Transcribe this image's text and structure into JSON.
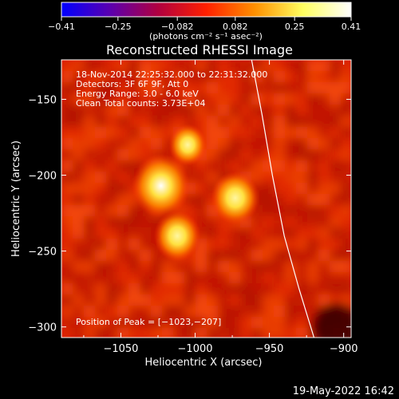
{
  "chart_data": {
    "type": "heatmap",
    "title": "Reconstructed RHESSI Image",
    "xlabel": "Heliocentric X (arcsec)",
    "ylabel": "Heliocentric Y (arcsec)",
    "xlim": [
      -1090,
      -895
    ],
    "ylim": [
      -307,
      -124
    ],
    "x_ticks": [
      -1050,
      -1000,
      -950,
      -900
    ],
    "y_ticks": [
      -150,
      -200,
      -250,
      -300
    ],
    "x_tick_labels": [
      "−1050",
      "−1000",
      "−950",
      "−900"
    ],
    "y_tick_labels": [
      "−150",
      "−200",
      "−250",
      "−300"
    ],
    "colorbar": {
      "min": -0.41,
      "max": 0.41,
      "ticks": [
        -0.41,
        -0.25,
        -0.082,
        0.082,
        0.25,
        0.41
      ],
      "tick_labels": [
        "−0.41",
        "−0.25",
        "−0.082",
        "0.082",
        "0.25",
        "0.41"
      ],
      "units": "(photons cm⁻² s⁻¹ asec⁻²)",
      "colors": [
        "#0000ff",
        "#5a00b0",
        "#b00040",
        "#ff2000",
        "#ff9000",
        "#ffff60",
        "#ffffff"
      ]
    },
    "sources": [
      {
        "x": -1023,
        "y": -207,
        "peak": 0.41
      },
      {
        "x": -973,
        "y": -215,
        "peak": 0.3
      },
      {
        "x": -1012,
        "y": -240,
        "peak": 0.28
      },
      {
        "x": -1005,
        "y": -180,
        "peak": 0.18
      }
    ],
    "limb_curve": [
      {
        "x": -962,
        "y": -124
      },
      {
        "x": -955,
        "y": -160
      },
      {
        "x": -948,
        "y": -200
      },
      {
        "x": -940,
        "y": -240
      },
      {
        "x": -930,
        "y": -275
      },
      {
        "x": -920,
        "y": -307
      }
    ],
    "annotations": [
      "18-Nov-2014 22:25:32.000 to 22:31:32.000",
      "Detectors: 3F 6F 9F, Att 0",
      "Energy Range: 3.0 - 6.0 keV",
      "Clean     Total counts: 3.73E+04"
    ],
    "peak_text": "Position of Peak = [−1023,−207]"
  },
  "footer": {
    "timestamp": "19-May-2022 16:42"
  }
}
